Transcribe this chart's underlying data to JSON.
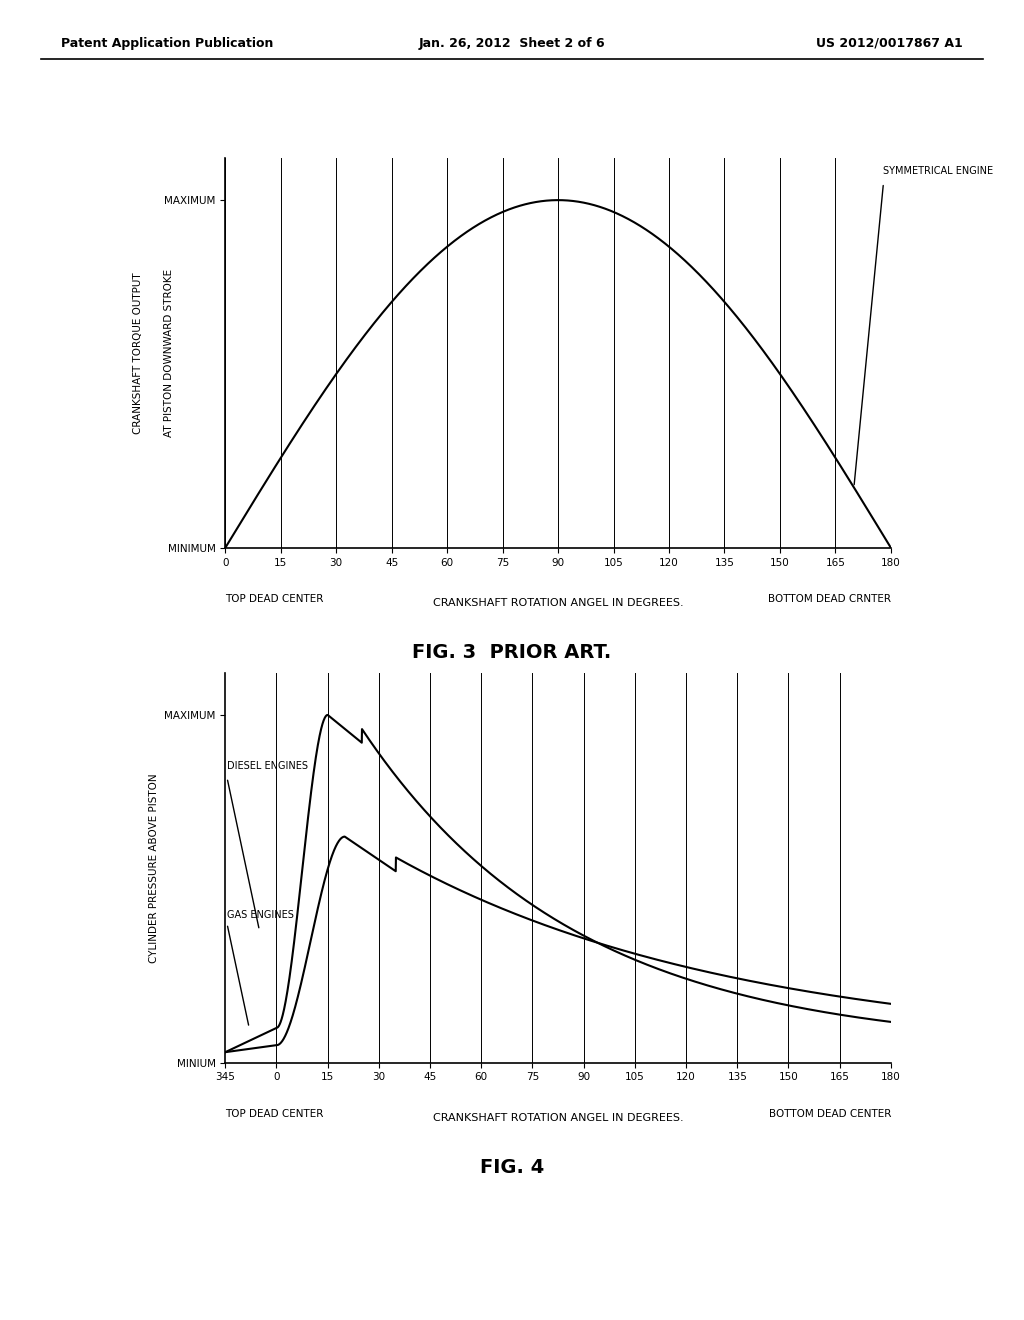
{
  "header_left": "Patent Application Publication",
  "header_center": "Jan. 26, 2012  Sheet 2 of 6",
  "header_right": "US 2012/0017867 A1",
  "fig3": {
    "title": "FIG. 3  PRIOR ART.",
    "ylabel_line1": "CRANKSHAFT TORQUE OUTPUT",
    "ylabel_line2": "AT PISTON DOWNWARD STROKE",
    "xlabel": "CRANKSHAFT ROTATION ANGEL IN DEGREES.",
    "xlabel2_left": "TOP DEAD CENTER",
    "xlabel2_right": "BOTTOM DEAD CRNTER",
    "ytick_max": "MAXIMUM",
    "ytick_min": "MINIMUM",
    "xticks": [
      0,
      15,
      30,
      45,
      60,
      75,
      90,
      105,
      120,
      135,
      150,
      165,
      180
    ],
    "curve_label": "SYMMETRICAL ENGINE",
    "vlines": [
      0,
      15,
      30,
      45,
      60,
      75,
      90,
      105,
      120,
      135,
      150,
      165,
      180
    ]
  },
  "fig4": {
    "title": "FIG. 4",
    "ylabel": "CYLINDER PRESSURE ABOVE PISTON",
    "xlabel": "CRANKSHAFT ROTATION ANGEL IN DEGREES.",
    "xlabel2_left": "TOP DEAD CENTER",
    "xlabel2_right": "BOTTOM DEAD CENTER",
    "ytick_max": "MAXIMUM",
    "ytick_min": "MINIUM",
    "xticks_labels": [
      345,
      0,
      15,
      30,
      45,
      60,
      75,
      90,
      105,
      120,
      135,
      150,
      165,
      180
    ],
    "xticks_pos": [
      -15,
      0,
      15,
      30,
      45,
      60,
      75,
      90,
      105,
      120,
      135,
      150,
      165,
      180
    ],
    "diesel_label": "DIESEL ENGINES",
    "gas_label": "GAS ENGINES",
    "vlines": [
      0,
      15,
      30,
      45,
      60,
      75,
      90,
      105,
      120,
      135,
      150,
      165,
      180
    ]
  },
  "bg_color": "#ffffff",
  "line_color": "#000000"
}
